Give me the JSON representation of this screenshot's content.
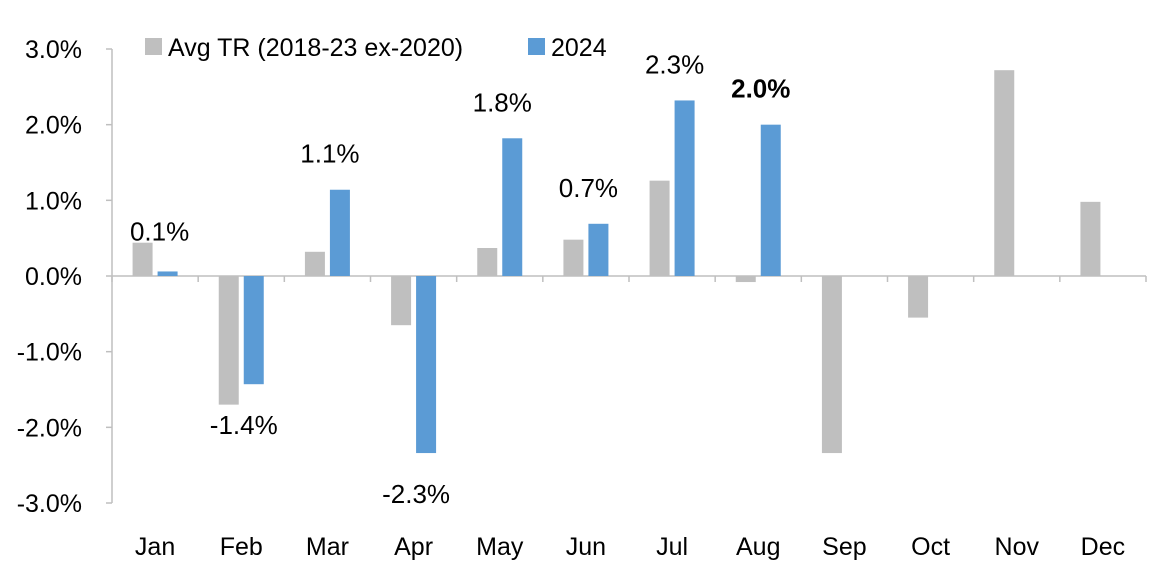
{
  "chart_data": {
    "type": "bar",
    "title": "",
    "xlabel": "",
    "ylabel": "",
    "ylim": [
      -3.0,
      3.0
    ],
    "yticks": [
      "3.0%",
      "2.0%",
      "1.0%",
      "0.0%",
      "-1.0%",
      "-2.0%",
      "-3.0%"
    ],
    "ytick_values": [
      3,
      2,
      1,
      0,
      -1,
      -2,
      -3
    ],
    "grid": false,
    "legend_position": "top",
    "categories": [
      "Jan",
      "Feb",
      "Mar",
      "Apr",
      "May",
      "Jun",
      "Jul",
      "Aug",
      "Sep",
      "Oct",
      "Nov",
      "Dec"
    ],
    "series": [
      {
        "name": "Avg TR (2018-23 ex-2020)",
        "color": "#bfbfbf",
        "values": [
          0.44,
          -1.7,
          0.32,
          -0.65,
          0.37,
          0.48,
          1.26,
          -0.08,
          -2.34,
          -0.55,
          2.72,
          0.98
        ]
      },
      {
        "name": "2024",
        "color": "#5b9bd5",
        "values": [
          0.06,
          -1.43,
          1.14,
          -2.34,
          1.82,
          0.69,
          2.32,
          2.0,
          null,
          null,
          null,
          null
        ],
        "data_labels": [
          "0.1%",
          "-1.4%",
          "1.1%",
          "-2.3%",
          "1.8%",
          "0.7%",
          "2.3%",
          "2.0%",
          null,
          null,
          null,
          null
        ]
      }
    ],
    "highlight_label": {
      "index": 7,
      "color": "#ff0000",
      "bold": true
    }
  }
}
